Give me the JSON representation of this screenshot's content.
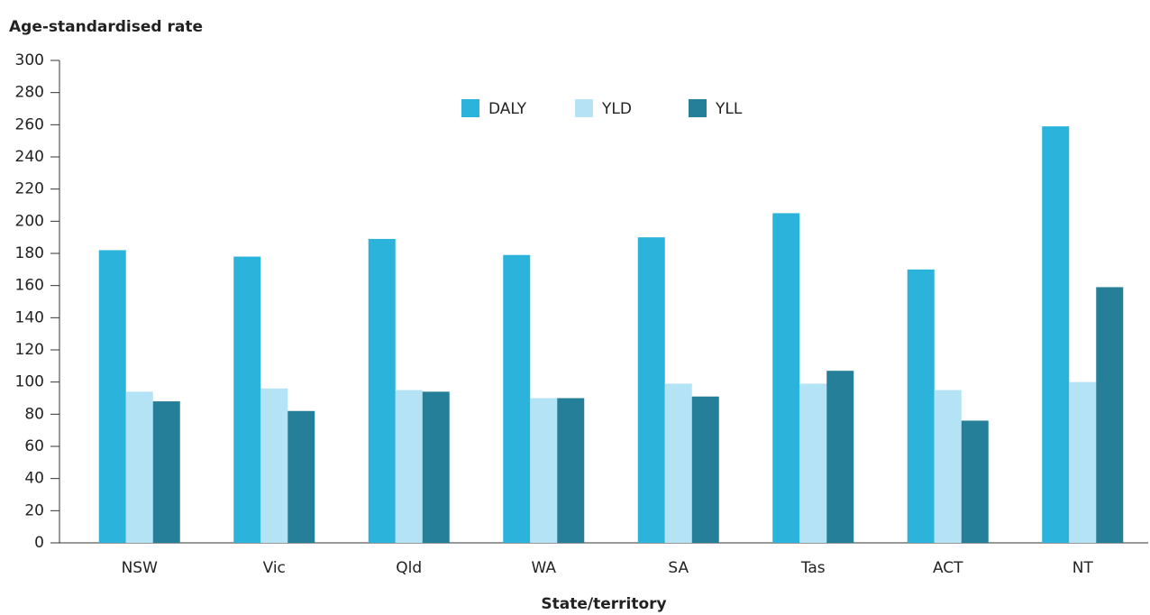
{
  "chart_data": {
    "type": "bar",
    "y_label": "Age-standardised rate",
    "x_label": "State/territory",
    "categories": [
      "NSW",
      "Vic",
      "Qld",
      "WA",
      "SA",
      "Tas",
      "ACT",
      "NT"
    ],
    "series": [
      {
        "name": "DALY",
        "color": "#2bb3dc",
        "values": [
          182,
          178,
          189,
          179,
          190,
          205,
          170,
          259
        ]
      },
      {
        "name": "YLD",
        "color": "#b3e3f5",
        "values": [
          94,
          96,
          95,
          90,
          99,
          99,
          95,
          100
        ]
      },
      {
        "name": "YLL",
        "color": "#267f98",
        "values": [
          88,
          82,
          94,
          90,
          91,
          107,
          76,
          159
        ]
      }
    ],
    "ylim": [
      0,
      300
    ],
    "yticks": [
      0,
      20,
      40,
      60,
      80,
      100,
      120,
      140,
      160,
      180,
      200,
      220,
      240,
      260,
      280,
      300
    ],
    "grid": false,
    "legend": "top"
  }
}
